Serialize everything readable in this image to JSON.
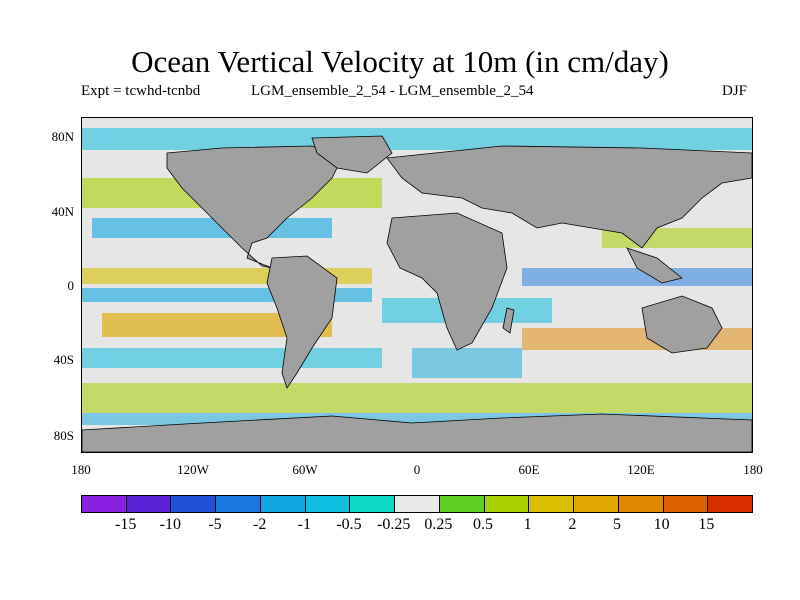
{
  "title": "Ocean Vertical Velocity at 10m (in cm/day)",
  "expt": "Expt = tcwhd-tcnbd",
  "ensemble": "LGM_ensemble_2_54 - LGM_ensemble_2_54",
  "season": "DJF",
  "lat_labels": [
    "80N",
    "40N",
    "0",
    "40S",
    "80S"
  ],
  "lon_labels": [
    "180",
    "120W",
    "60W",
    "0",
    "60E",
    "120E",
    "180"
  ],
  "colorbar": {
    "colors": [
      "#8a20e0",
      "#5a20d8",
      "#2050d8",
      "#1a78e0",
      "#10a8e0",
      "#10c0e0",
      "#10d8c8",
      "#e8e8e8",
      "#60d020",
      "#a8d000",
      "#d8c000",
      "#e0a800",
      "#e08800",
      "#e06000",
      "#d83000"
    ],
    "labels": [
      "-15",
      "-10",
      "-5",
      "-2",
      "-1",
      "-0.5",
      "-0.25",
      "0.25",
      "0.5",
      "1",
      "2",
      "5",
      "10",
      "15"
    ]
  },
  "map": {
    "land_color": "#a0a0a0",
    "ocean_neutral": "#e6e6e6"
  }
}
